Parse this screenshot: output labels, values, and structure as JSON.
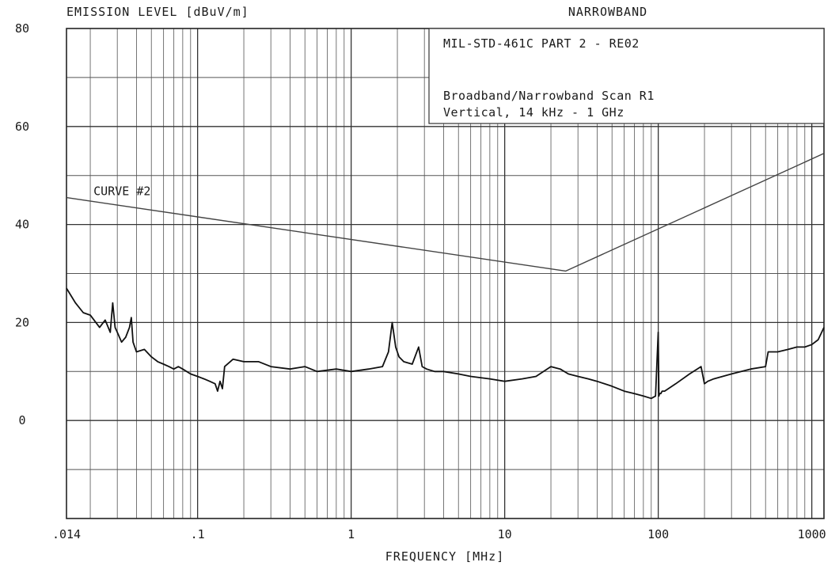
{
  "chart_data": {
    "type": "line",
    "title": "NARROWBAND",
    "ylabel": "EMISSION LEVEL [dBuV/m]",
    "xlabel": "FREQUENCY  [MHz]",
    "x_scale": "log",
    "xlim": [
      0.014,
      1200
    ],
    "ylim": [
      -20,
      80
    ],
    "grid": true,
    "y_ticks": [
      {
        "value": 80,
        "label": "80"
      },
      {
        "value": 60,
        "label": "60"
      },
      {
        "value": 40,
        "label": "40"
      },
      {
        "value": 20,
        "label": "20"
      },
      {
        "value": 0,
        "label": "0"
      }
    ],
    "x_ticks": [
      {
        "value": 0.014,
        "label": ".014"
      },
      {
        "value": 0.1,
        "label": ".1"
      },
      {
        "value": 1,
        "label": "1"
      },
      {
        "value": 10,
        "label": "10"
      },
      {
        "value": 100,
        "label": "100"
      },
      {
        "value": 1000,
        "label": "1000"
      }
    ],
    "info_box": {
      "line1": "MIL-STD-461C PART 2 - RE02",
      "line2": "Broadband/Narrowband Scan  R1",
      "line3": "Vertical, 14 kHz - 1 GHz"
    },
    "annotations": [
      {
        "text": "CURVE #2",
        "x": 0.021,
        "y": 46
      }
    ],
    "series": [
      {
        "name": "CURVE #2",
        "role": "limit",
        "x": [
          0.014,
          25,
          1200
        ],
        "y": [
          45.5,
          30.5,
          54.5
        ]
      },
      {
        "role": "measured",
        "x": [
          0.014,
          0.016,
          0.018,
          0.02,
          0.023,
          0.025,
          0.027,
          0.028,
          0.029,
          0.03,
          0.032,
          0.034,
          0.036,
          0.037,
          0.038,
          0.04,
          0.045,
          0.05,
          0.055,
          0.06,
          0.065,
          0.07,
          0.075,
          0.08,
          0.09,
          0.1,
          0.11,
          0.12,
          0.13,
          0.135,
          0.14,
          0.145,
          0.15,
          0.17,
          0.2,
          0.25,
          0.3,
          0.4,
          0.5,
          0.6,
          0.8,
          1,
          1.3,
          1.6,
          1.75,
          1.85,
          1.95,
          2.05,
          2.2,
          2.5,
          2.75,
          2.9,
          3.1,
          3.5,
          4,
          5,
          6,
          8,
          10,
          13,
          16,
          20,
          23,
          26,
          30,
          35,
          40,
          50,
          60,
          70,
          80,
          90,
          96,
          100,
          101,
          102,
          104,
          106,
          110,
          130,
          160,
          190,
          200,
          210,
          230,
          300,
          400,
          500,
          520,
          600,
          700,
          800,
          900,
          1000,
          1100,
          1200
        ],
        "y": [
          27,
          24,
          22,
          21.5,
          19,
          20.5,
          18,
          24,
          19,
          18,
          16,
          17,
          19,
          21,
          16,
          14,
          14.5,
          13,
          12,
          11.5,
          11,
          10.5,
          11,
          10.5,
          9.5,
          9,
          8.5,
          8,
          7.5,
          6,
          8,
          6.5,
          11,
          12.5,
          12,
          12,
          11,
          10.5,
          11,
          10,
          10.5,
          10,
          10.5,
          11,
          14,
          20,
          15,
          13,
          12,
          11.5,
          15,
          11,
          10.5,
          10,
          10,
          9.5,
          9,
          8.5,
          8,
          8.5,
          9,
          11,
          10.5,
          9.5,
          9,
          8.5,
          8,
          7,
          6,
          5.5,
          5,
          4.5,
          5,
          18,
          5,
          5.5,
          5.5,
          6,
          6,
          7.5,
          9.5,
          11,
          7.5,
          8,
          8.5,
          9.5,
          10.5,
          11,
          14,
          14,
          14.5,
          15,
          15,
          15.5,
          16.5,
          19
        ]
      }
    ]
  }
}
